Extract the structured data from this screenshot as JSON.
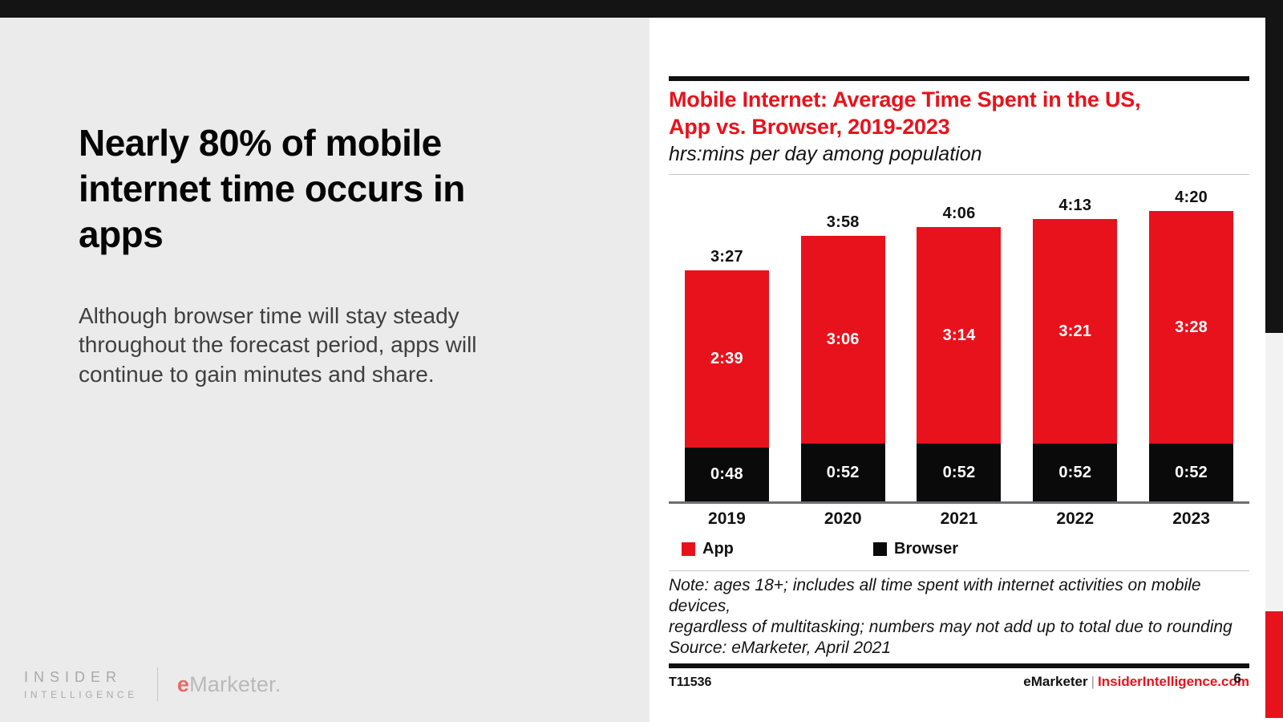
{
  "page": {
    "number": "6"
  },
  "colors": {
    "accent_red": "#e8121c",
    "bar_black": "#0a0a0a",
    "panel_gray": "#ebebeb"
  },
  "slide": {
    "title": "Nearly 80% of mobile internet time occurs in apps",
    "body": "Although browser time will stay steady throughout the forecast period, apps will continue to gain minutes and share."
  },
  "branding": {
    "insider_line1": "INSIDER",
    "insider_line2": "INTELLIGENCE",
    "emarketer_e": "e",
    "emarketer_rest": "Marketer."
  },
  "chart": {
    "title_line1": "Mobile Internet: Average Time Spent in the US,",
    "title_line2": "App vs. Browser, 2019-2023",
    "subtitle": "hrs:mins per day among population",
    "note_lines": [
      "Note: ages 18+; includes all time spent with internet activities on mobile devices,",
      "regardless of multitasking; numbers may not add up to total due to rounding",
      "Source: eMarketer, April 2021"
    ],
    "footer_id": "T11536",
    "footer_brand": "eMarketer",
    "footer_divider": "|",
    "footer_site": "InsiderIntelligence.com"
  },
  "chart_data": {
    "type": "bar",
    "stacked": true,
    "title": "Mobile Internet: Average Time Spent in the US, App vs. Browser, 2019-2023",
    "subtitle": "hrs:mins per day among population",
    "categories": [
      "2019",
      "2020",
      "2021",
      "2022",
      "2023"
    ],
    "series": [
      {
        "name": "App",
        "color": "#e8121c",
        "labels": [
          "2:39",
          "3:06",
          "3:14",
          "3:21",
          "3:28"
        ],
        "values_minutes": [
          159,
          186,
          194,
          201,
          208
        ]
      },
      {
        "name": "Browser",
        "color": "#0a0a0a",
        "labels": [
          "0:48",
          "0:52",
          "0:52",
          "0:52",
          "0:52"
        ],
        "values_minutes": [
          48,
          52,
          52,
          52,
          52
        ]
      }
    ],
    "totals": [
      "3:27",
      "3:58",
      "4:06",
      "4:13",
      "4:20"
    ],
    "totals_minutes": [
      207,
      238,
      246,
      253,
      260
    ],
    "ylim_minutes": [
      0,
      260
    ],
    "grid": false,
    "legend_position": "bottom"
  }
}
